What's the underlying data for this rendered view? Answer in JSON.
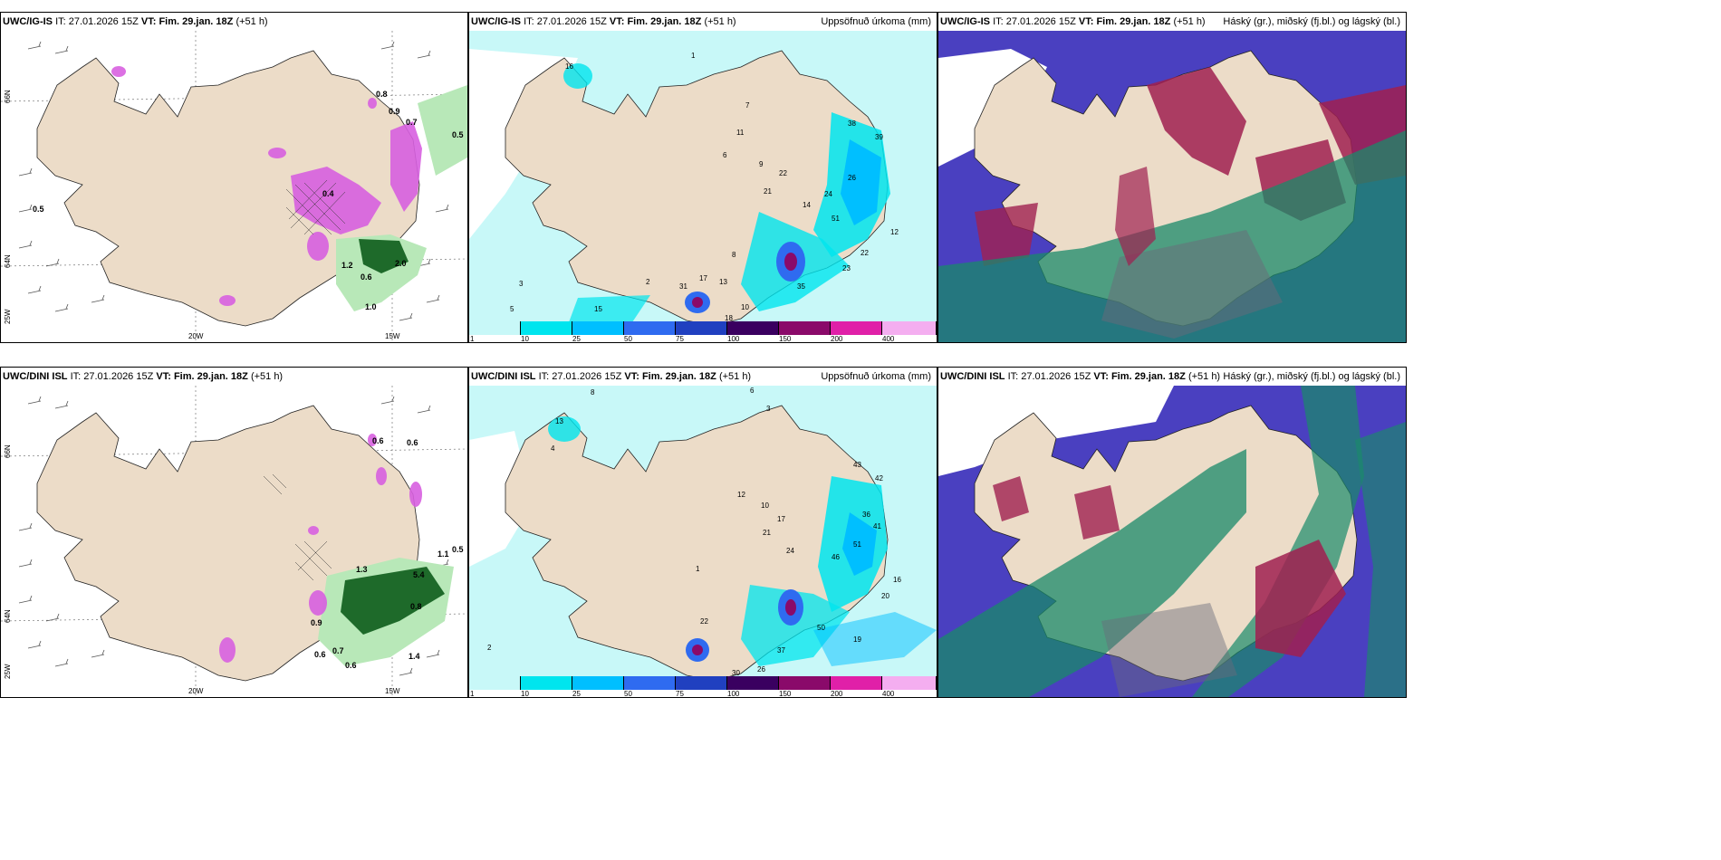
{
  "panels": {
    "p1": {
      "model": "UWC/IG-IS",
      "it_label": "IT:",
      "it": "27.01.2026 15Z",
      "vt_label": "VT:",
      "vt": "Fim. 29.jan. 18Z",
      "lead": "(+51 h)",
      "right": ""
    },
    "p2": {
      "model": "UWC/IG-IS",
      "it_label": "IT:",
      "it": "27.01.2026 15Z",
      "vt_label": "VT:",
      "vt": "Fim. 29.jan. 18Z",
      "lead": "(+51 h)",
      "right": "Uppsöfnuð úrkoma (mm)"
    },
    "p3": {
      "model": "UWC/IG-IS",
      "it_label": "IT:",
      "it": "27.01.2026 15Z",
      "vt_label": "VT:",
      "vt": "Fim. 29.jan. 18Z",
      "lead": "(+51 h)",
      "right": "Háský (gr.), miðský (fj.bl.) og lágský (bl.)"
    },
    "p4": {
      "model": "UWC/DINI ISL",
      "it_label": "IT:",
      "it": "27.01.2026 15Z",
      "vt_label": "VT:",
      "vt": "Fim. 29.jan. 18Z",
      "lead": "(+51 h)",
      "right": ""
    },
    "p5": {
      "model": "UWC/DINI ISL",
      "it_label": "IT:",
      "it": "27.01.2026 15Z",
      "vt_label": "VT:",
      "vt": "Fim. 29.jan. 18Z",
      "lead": "(+51 h)",
      "right": "Uppsöfnuð úrkoma (mm)"
    },
    "p6": {
      "model": "UWC/DINI ISL",
      "it_label": "IT:",
      "it": "27.01.2026 15Z",
      "vt_label": "VT:",
      "vt": "Fim. 29.jan. 18Z",
      "lead": "(+51 h)",
      "right": "Háský (gr.), miðský (fj.bl.) og lágský (bl.)"
    }
  },
  "axes": {
    "lon_20": "20W",
    "lon_15": "15W",
    "lon_25": "25W",
    "lat_66": "66N",
    "lat_64": "64N"
  },
  "colorbar": {
    "labels": [
      "1",
      "10",
      "25",
      "50",
      "75",
      "100",
      "150",
      "200",
      "400"
    ],
    "colors": [
      "#c8f8f8",
      "#00e5ee",
      "#00bfff",
      "#2f6bf0",
      "#2040c0",
      "#3a0060",
      "#8a0a6a",
      "#e020a8",
      "#f4aef0"
    ]
  },
  "map_colors": {
    "land": "#ecdcc8",
    "sea_white": "#ffffff",
    "precip_light": "#c8f8f8",
    "precip_cyan": "#00e5ee",
    "snow_pink": "#d860e0",
    "rain_green": "#1e6a2a",
    "green_light": "#b8e8b8",
    "cloud_high": "#6a6a7a",
    "cloud_mid": "#4a40c0",
    "cloud_low": "#1a8a6a",
    "cloud_red": "#a02050"
  },
  "values": {
    "p1": [
      "0.8",
      "0.7",
      "0.5",
      "0.5",
      "1.2",
      "2.0",
      "0.6",
      "1.0",
      "0.4",
      "0.9"
    ],
    "p2": [
      "1",
      "3",
      "2",
      "5",
      "8",
      "7",
      "6",
      "9",
      "11",
      "21",
      "22",
      "14",
      "24",
      "26",
      "38",
      "39",
      "51",
      "35",
      "23",
      "22",
      "18",
      "17",
      "13",
      "12",
      "31",
      "15",
      "16",
      "10"
    ],
    "p4": [
      "0.6",
      "0.6",
      "0.5",
      "1.1",
      "5.4",
      "0.8",
      "0.9",
      "0.6",
      "0.7",
      "0.6",
      "1.4",
      "1.3"
    ],
    "p5": [
      "8",
      "6",
      "3",
      "1",
      "2",
      "4",
      "10",
      "12",
      "13",
      "17",
      "21",
      "24",
      "36",
      "42",
      "43",
      "50",
      "51",
      "37",
      "30",
      "26",
      "16",
      "19",
      "20",
      "22",
      "41",
      "46"
    ]
  }
}
